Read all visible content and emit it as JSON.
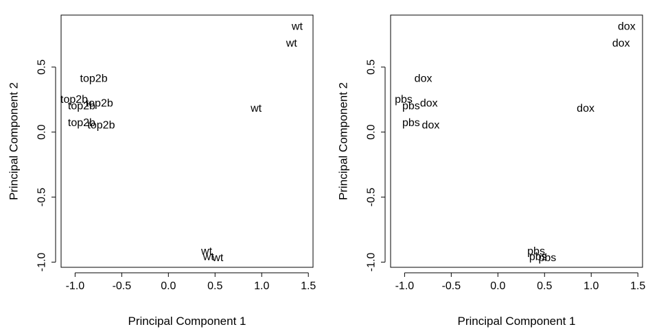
{
  "chart_data": [
    {
      "type": "scatter",
      "marker": "text-label",
      "xlabel": "Principal Component 1",
      "ylabel": "Principal Component 2",
      "xlim": [
        -1.15,
        1.55
      ],
      "ylim": [
        -1.04,
        0.9
      ],
      "xticks": [
        -1.0,
        -0.5,
        0.0,
        0.5,
        1.0,
        1.5
      ],
      "xtick_labels": [
        "-1.0",
        "-0.5",
        "0.0",
        "0.5",
        "1.0",
        "1.5"
      ],
      "yticks": [
        -1.0,
        -0.5,
        0.0,
        0.5
      ],
      "ytick_labels": [
        "-1.0",
        "-0.5",
        "0.0",
        "0.5"
      ],
      "points": [
        {
          "x": 1.38,
          "y": 0.81,
          "label": "wt"
        },
        {
          "x": 1.32,
          "y": 0.68,
          "label": "wt"
        },
        {
          "x": 0.94,
          "y": 0.18,
          "label": "wt"
        },
        {
          "x": -0.8,
          "y": 0.41,
          "label": "top2b"
        },
        {
          "x": -1.01,
          "y": 0.25,
          "label": "top2b"
        },
        {
          "x": -0.93,
          "y": 0.2,
          "label": "top2b"
        },
        {
          "x": -0.74,
          "y": 0.22,
          "label": "top2b"
        },
        {
          "x": -0.93,
          "y": 0.07,
          "label": "top2b"
        },
        {
          "x": -0.72,
          "y": 0.05,
          "label": "top2b"
        },
        {
          "x": 0.41,
          "y": -0.92,
          "label": "wt"
        },
        {
          "x": 0.43,
          "y": -0.96,
          "label": "wt"
        },
        {
          "x": 0.53,
          "y": -0.97,
          "label": "wt"
        }
      ]
    },
    {
      "type": "scatter",
      "marker": "text-label",
      "xlabel": "Principal Component 1",
      "ylabel": "Principal Component 2",
      "xlim": [
        -1.15,
        1.55
      ],
      "ylim": [
        -1.04,
        0.9
      ],
      "xticks": [
        -1.0,
        -0.5,
        0.0,
        0.5,
        1.0,
        1.5
      ],
      "xtick_labels": [
        "-1.0",
        "-0.5",
        "0.0",
        "0.5",
        "1.0",
        "1.5"
      ],
      "yticks": [
        -1.0,
        -0.5,
        0.0,
        0.5
      ],
      "ytick_labels": [
        "-1.0",
        "-0.5",
        "0.0",
        "0.5"
      ],
      "points": [
        {
          "x": 1.38,
          "y": 0.81,
          "label": "dox"
        },
        {
          "x": 1.32,
          "y": 0.68,
          "label": "dox"
        },
        {
          "x": 0.94,
          "y": 0.18,
          "label": "dox"
        },
        {
          "x": -0.8,
          "y": 0.41,
          "label": "dox"
        },
        {
          "x": -1.01,
          "y": 0.25,
          "label": "pbs"
        },
        {
          "x": -0.93,
          "y": 0.2,
          "label": "pbs"
        },
        {
          "x": -0.74,
          "y": 0.22,
          "label": "dox"
        },
        {
          "x": -0.93,
          "y": 0.07,
          "label": "pbs"
        },
        {
          "x": -0.72,
          "y": 0.05,
          "label": "dox"
        },
        {
          "x": 0.41,
          "y": -0.92,
          "label": "pbs"
        },
        {
          "x": 0.43,
          "y": -0.96,
          "label": "pbs"
        },
        {
          "x": 0.53,
          "y": -0.97,
          "label": "pbs"
        }
      ]
    }
  ]
}
